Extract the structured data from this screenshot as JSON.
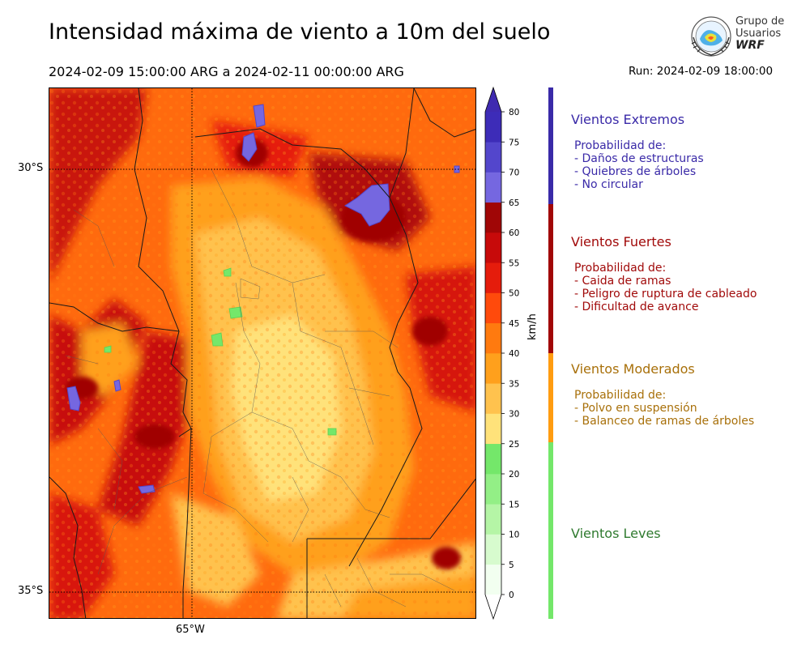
{
  "header": {
    "title": "Intensidad máxima de viento a 10m del suelo",
    "period": "2024-02-09 15:00:00 ARG  a  2024-02-11 00:00:00 ARG",
    "run": "Run: 2024-02-09 18:00:00"
  },
  "logo": {
    "line1": "Grupo de",
    "line2": "Usuarios",
    "line3": "WRF"
  },
  "map": {
    "lat_labels": [
      "30°S",
      "35°S"
    ],
    "lon_labels": [
      "65°W"
    ]
  },
  "colorbar": {
    "unit": "km/h",
    "ticks": [
      "0",
      "5",
      "10",
      "15",
      "20",
      "25",
      "30",
      "35",
      "40",
      "45",
      "50",
      "55",
      "60",
      "65",
      "70",
      "75",
      "80"
    ],
    "colors": [
      "#f2fff0",
      "#d7fbce",
      "#b5f5a6",
      "#93ef86",
      "#74e76a",
      "#ffe27a",
      "#ffc24e",
      "#ffa01c",
      "#ff7a0f",
      "#ff4a0c",
      "#e51c0c",
      "#c70a0a",
      "#a00606",
      "#7567e0",
      "#5346cc",
      "#3d2cb8"
    ],
    "extend_low": "#ffffff",
    "extend_high": "#3f2ab0"
  },
  "categories": [
    {
      "title": "Vientos Extremos",
      "color": "#3a2aa8",
      "bar_color": "#3a2aa8",
      "body": [
        "Probabilidad de:",
        "- Daños de estructuras",
        "- Quiebres de árboles",
        "- No circular"
      ]
    },
    {
      "title": "Vientos Fuertes",
      "color": "#a10a0a",
      "bar_color": "#a10606",
      "body": [
        "Probabilidad de:",
        "- Caida de ramas",
        "- Peligro de ruptura de cableado",
        "- Dificultad de avance"
      ]
    },
    {
      "title": "Vientos Moderados",
      "color": "#a8700a",
      "bar_color": "#ff9c10",
      "body": [
        "Probabilidad de:",
        "- Polvo en suspensión",
        "- Balanceo de ramas de árboles"
      ]
    },
    {
      "title": "Vientos Leves",
      "color": "#2f7a2f",
      "bar_color": "#74e76a",
      "body": []
    }
  ]
}
